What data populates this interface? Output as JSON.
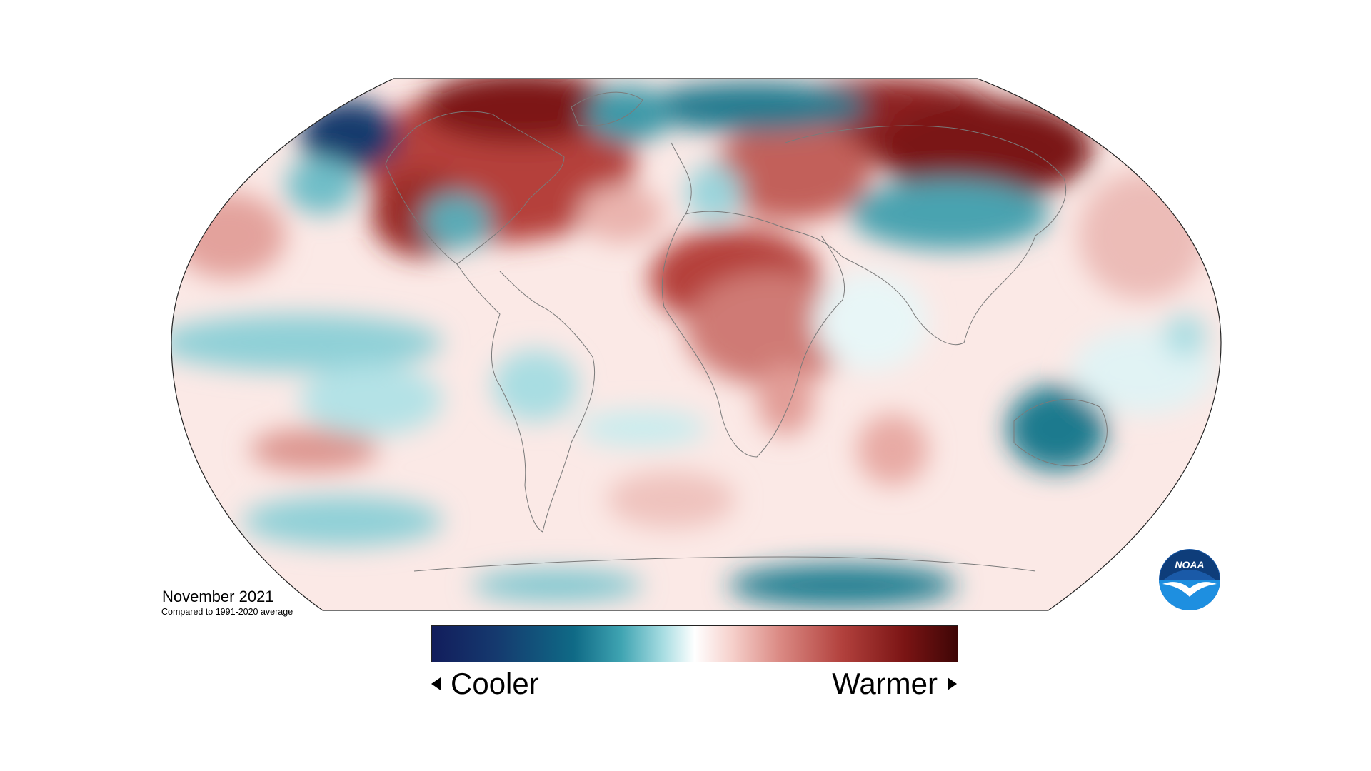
{
  "title": "November 2021",
  "subtitle": "Compared to 1991-2020 average",
  "legend": {
    "cooler_label": "Cooler",
    "warmer_label": "Warmer",
    "colors": {
      "coldest": "#121d5c",
      "cool": "#0f6a86",
      "neutral": "#ffffff",
      "warm": "#db8b85",
      "warmest": "#3e0606"
    }
  },
  "logo": {
    "text": "NOAA",
    "icon": "noaa-logo-icon"
  }
}
